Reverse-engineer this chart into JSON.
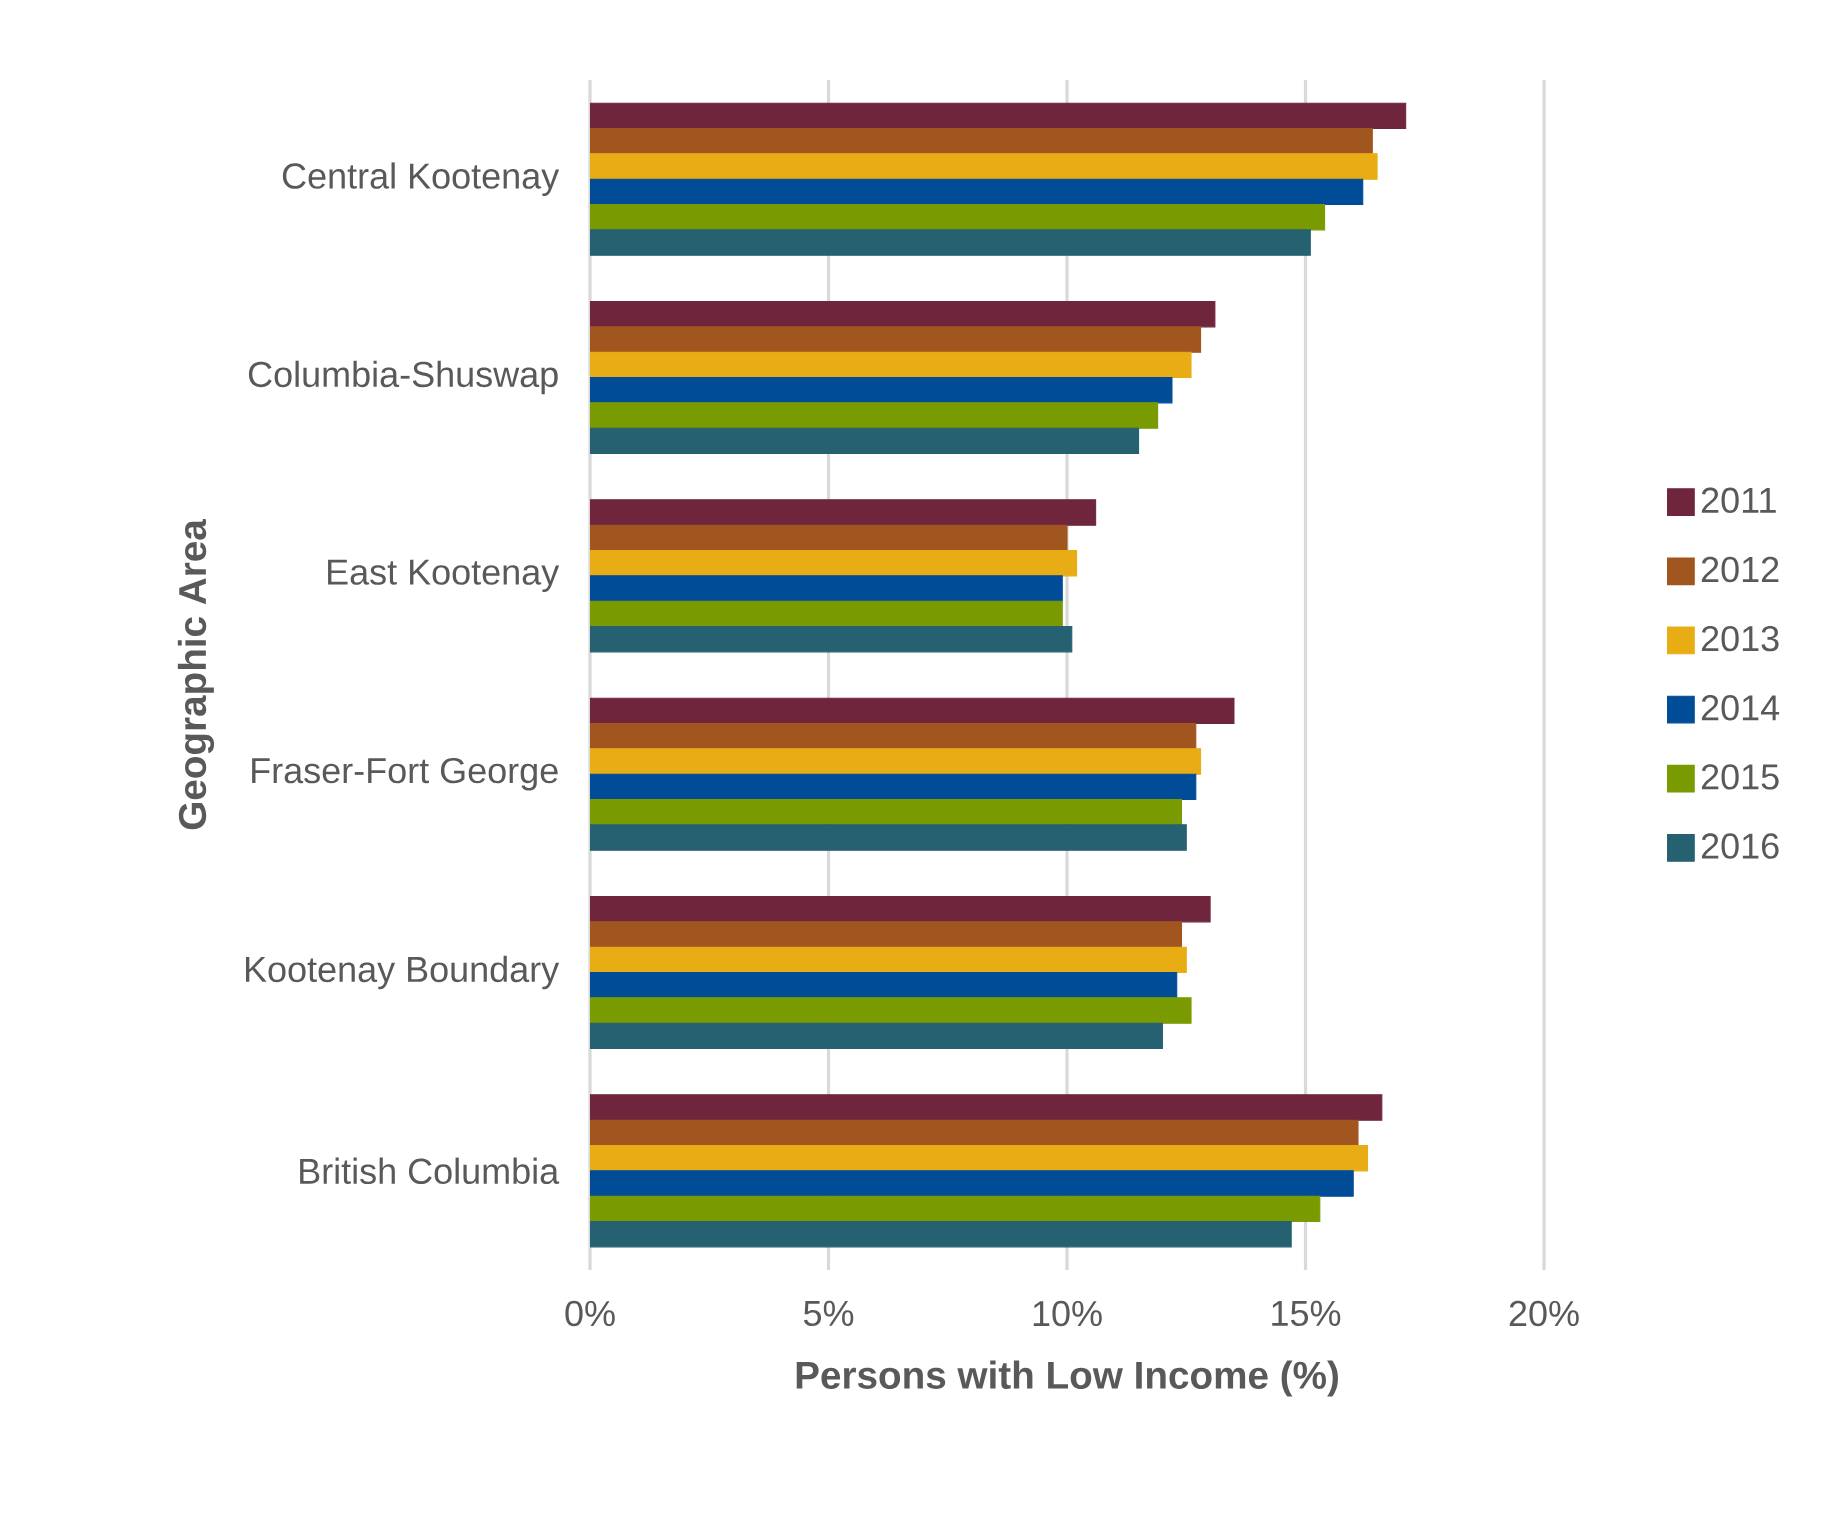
{
  "chart_data": {
    "type": "bar",
    "orientation": "horizontal",
    "xlabel": "Persons with Low Income (%)",
    "ylabel": "Geographic Area",
    "categories": [
      "Central Kootenay",
      "Columbia-Shuswap",
      "East Kootenay",
      "Fraser-Fort George",
      "Kootenay Boundary",
      "British Columbia"
    ],
    "series": [
      {
        "name": "2011",
        "color": "#6f263d",
        "values": [
          17.1,
          13.1,
          10.6,
          13.5,
          13.0,
          16.6
        ]
      },
      {
        "name": "2012",
        "color": "#a0561e",
        "values": [
          16.4,
          12.8,
          10.0,
          12.7,
          12.4,
          16.1
        ]
      },
      {
        "name": "2013",
        "color": "#e8ad14",
        "values": [
          16.5,
          12.6,
          10.2,
          12.8,
          12.5,
          16.3
        ]
      },
      {
        "name": "2014",
        "color": "#004c97",
        "values": [
          16.2,
          12.2,
          9.9,
          12.7,
          12.3,
          16.0
        ]
      },
      {
        "name": "2015",
        "color": "#7a9a01",
        "values": [
          15.4,
          11.9,
          9.9,
          12.4,
          12.6,
          15.3
        ]
      },
      {
        "name": "2016",
        "color": "#256170",
        "values": [
          15.1,
          11.5,
          10.1,
          12.5,
          12.0,
          14.7
        ]
      }
    ],
    "xlim": [
      0,
      20
    ],
    "xticks": [
      {
        "value": 0,
        "label": "0%"
      },
      {
        "value": 5,
        "label": "5%"
      },
      {
        "value": 10,
        "label": "10%"
      },
      {
        "value": 15,
        "label": "15%"
      },
      {
        "value": 20,
        "label": "20%"
      }
    ],
    "grid": "x",
    "legend": "right"
  }
}
